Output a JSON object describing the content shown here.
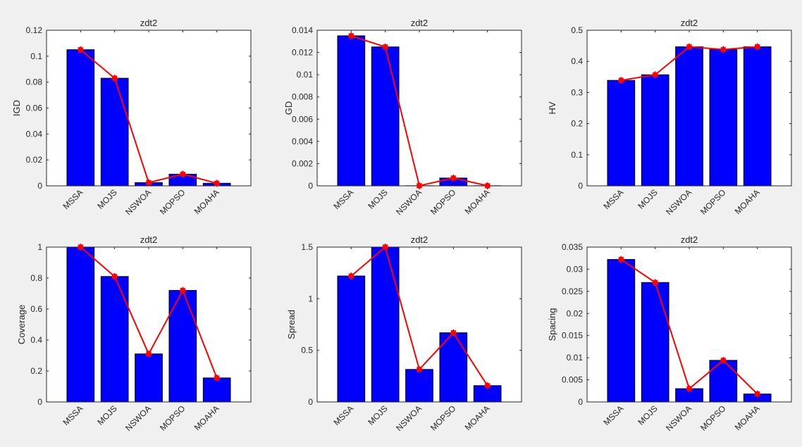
{
  "colors": {
    "bar": "#0000ff",
    "bar_edge": "#000000",
    "line": "#ff0000",
    "axes_bg": "#ffffff",
    "figure_bg": "#f0f0f0",
    "text": "#262626"
  },
  "chart_data": [
    {
      "type": "bar",
      "title": "zdt2",
      "xlabel": "",
      "ylabel": "IGD",
      "categories": [
        "MSSA",
        "MOJS",
        "NSWOA",
        "MOPSO",
        "MOAHA"
      ],
      "values": [
        0.105,
        0.083,
        0.0025,
        0.009,
        0.002
      ],
      "overlay_line": true,
      "ylim": [
        0,
        0.12
      ],
      "yticks": [
        0,
        0.02,
        0.04,
        0.06,
        0.08,
        0.1,
        0.12
      ],
      "ytick_labels": [
        "0",
        "0.02",
        "0.04",
        "0.06",
        "0.08",
        "0.1",
        "0.12"
      ]
    },
    {
      "type": "bar",
      "title": "zdt2",
      "xlabel": "",
      "ylabel": "GD",
      "categories": [
        "MSSA",
        "MOJS",
        "NSWOA",
        "MOPSO",
        "MOAHA"
      ],
      "values": [
        0.0135,
        0.0125,
        1e-05,
        0.0007,
        1e-05
      ],
      "overlay_line": true,
      "ylim": [
        0,
        0.014
      ],
      "yticks": [
        0,
        0.002,
        0.004,
        0.006,
        0.008,
        0.01,
        0.012,
        0.014
      ],
      "ytick_labels": [
        "0",
        "0.002",
        "0.004",
        "0.006",
        "0.008",
        "0.01",
        "0.012",
        "0.014"
      ]
    },
    {
      "type": "bar",
      "title": "zdt2",
      "xlabel": "",
      "ylabel": "HV",
      "categories": [
        "MSSA",
        "MOJS",
        "NSWOA",
        "MOPSO",
        "MOAHA"
      ],
      "values": [
        0.339,
        0.357,
        0.447,
        0.438,
        0.447
      ],
      "overlay_line": true,
      "ylim": [
        0,
        0.5
      ],
      "yticks": [
        0,
        0.1,
        0.2,
        0.3,
        0.4,
        0.5
      ],
      "ytick_labels": [
        "0",
        "0.1",
        "0.2",
        "0.3",
        "0.4",
        "0.5"
      ]
    },
    {
      "type": "bar",
      "title": "zdt2",
      "xlabel": "",
      "ylabel": "Coverage",
      "categories": [
        "MSSA",
        "MOJS",
        "NSWOA",
        "MOPSO",
        "MOAHA"
      ],
      "values": [
        1.0,
        0.81,
        0.31,
        0.72,
        0.155
      ],
      "overlay_line": true,
      "ylim": [
        0,
        1
      ],
      "yticks": [
        0,
        0.2,
        0.4,
        0.6,
        0.8,
        1
      ],
      "ytick_labels": [
        "0",
        "0.2",
        "0.4",
        "0.6",
        "0.8",
        "1"
      ]
    },
    {
      "type": "bar",
      "title": "zdt2",
      "xlabel": "",
      "ylabel": "Spread",
      "categories": [
        "MSSA",
        "MOJS",
        "NSWOA",
        "MOPSO",
        "MOAHA"
      ],
      "values": [
        1.22,
        1.5,
        0.315,
        0.67,
        0.158
      ],
      "overlay_line": true,
      "ylim": [
        0,
        1.5
      ],
      "yticks": [
        0,
        0.5,
        1,
        1.5
      ],
      "ytick_labels": [
        "0",
        "0.5",
        "1",
        "1.5"
      ]
    },
    {
      "type": "bar",
      "title": "zdt2",
      "xlabel": "",
      "ylabel": "Spacing",
      "categories": [
        "MSSA",
        "MOJS",
        "NSWOA",
        "MOPSO",
        "MOAHA"
      ],
      "values": [
        0.0322,
        0.027,
        0.003,
        0.0094,
        0.0018
      ],
      "overlay_line": true,
      "ylim": [
        0,
        0.035
      ],
      "yticks": [
        0,
        0.005,
        0.01,
        0.015,
        0.02,
        0.025,
        0.03,
        0.035
      ],
      "ytick_labels": [
        "0",
        "0.005",
        "0.01",
        "0.015",
        "0.02",
        "0.025",
        "0.03",
        "0.035"
      ]
    }
  ]
}
